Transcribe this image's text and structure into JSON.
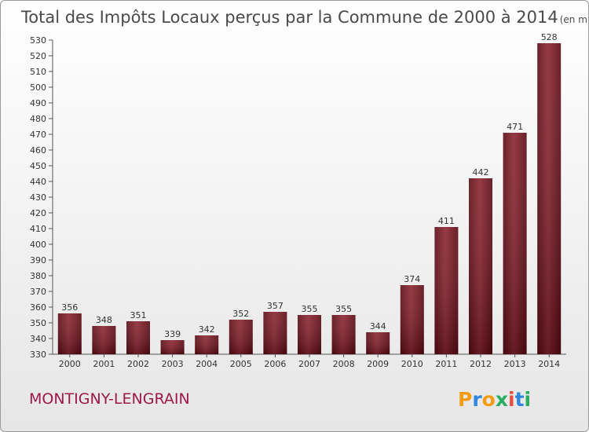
{
  "chart_data": {
    "type": "bar",
    "title": "Total des Impôts Locaux perçus par la Commune de 2000 à 2014",
    "unit_note": "(en milliers d'€)",
    "categories": [
      "2000",
      "2001",
      "2002",
      "2003",
      "2004",
      "2005",
      "2006",
      "2007",
      "2008",
      "2009",
      "2010",
      "2011",
      "2012",
      "2013",
      "2014"
    ],
    "values": [
      356,
      348,
      351,
      339,
      342,
      352,
      357,
      355,
      355,
      344,
      374,
      411,
      442,
      471,
      528
    ],
    "ylim": [
      330,
      530
    ],
    "ytick_step": 10,
    "grid": false,
    "bar_color": "#7a1020"
  },
  "commune": "MONTIGNY-LENGRAIN",
  "brand": {
    "letters": [
      "P",
      "r",
      "o",
      "x",
      "i",
      "t",
      "i"
    ],
    "colors": [
      "#f39c12",
      "#2e86de",
      "#f39c12",
      "#27ae60",
      "#e74c3c",
      "#2e86de",
      "#27ae60"
    ]
  }
}
